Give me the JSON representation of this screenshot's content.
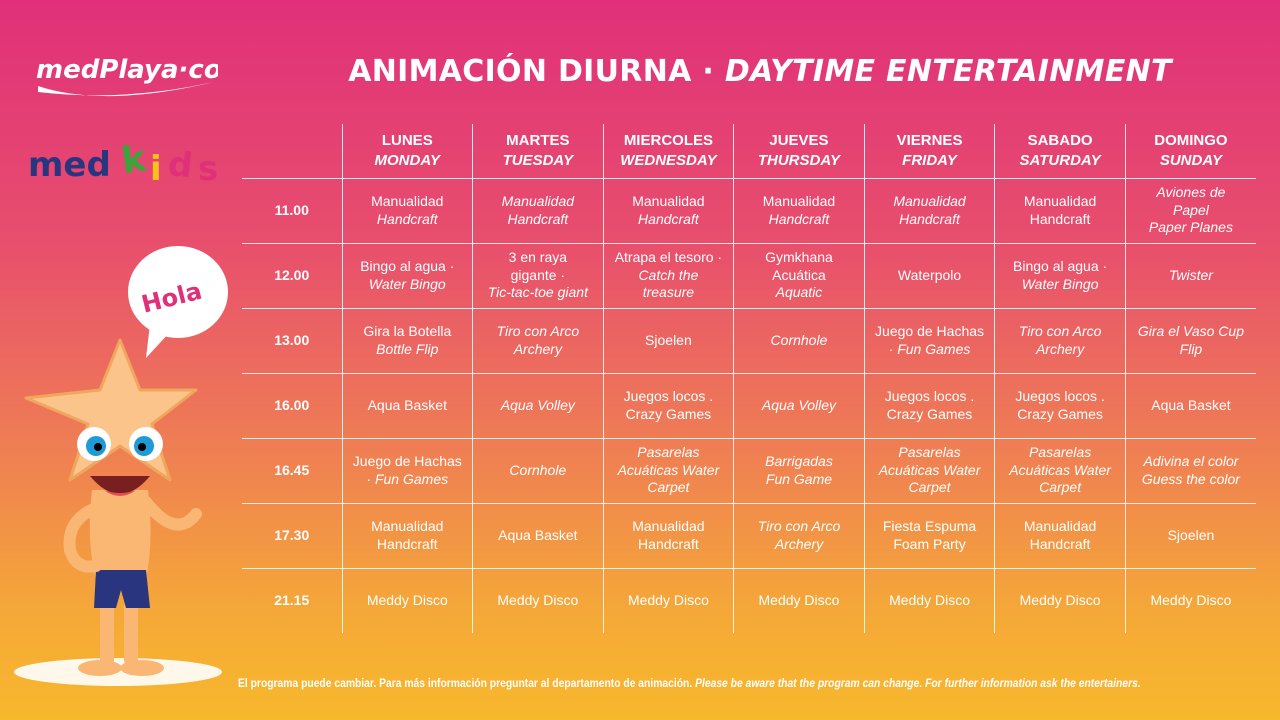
{
  "logos": {
    "medplaya": "medPlaya·com",
    "medkids": "medKids"
  },
  "title": {
    "es": "ANIMACIÓN DIURNA · ",
    "en": "DAYTIME ENTERTAINMENT"
  },
  "mascot": {
    "bubble": "Hola"
  },
  "days": [
    {
      "es": "LUNES",
      "en": "MONDAY"
    },
    {
      "es": "MARTES",
      "en": "TUESDAY"
    },
    {
      "es": "MIERCOLES",
      "en": "WEDNESDAY"
    },
    {
      "es": "JUEVES",
      "en": "THURSDAY"
    },
    {
      "es": "VIERNES",
      "en": "FRIDAY"
    },
    {
      "es": "SABADO",
      "en": "SATURDAY"
    },
    {
      "es": "DOMINGO",
      "en": "SUNDAY"
    }
  ],
  "rows": [
    {
      "time": "11.00",
      "cells": [
        {
          "l1": "Manualidad",
          "l2": "Handcraft",
          "italic": "l2"
        },
        {
          "l1": "Manualidad",
          "l2": "Handcraft",
          "italic": "all"
        },
        {
          "l1": "Manualidad",
          "l2": "Handcraft",
          "italic": "l2"
        },
        {
          "l1": "Manualidad",
          "l2": "Handcraft",
          "italic": "l2"
        },
        {
          "l1": "Manualidad",
          "l2": "Handcraft",
          "italic": "all"
        },
        {
          "l1": "Manualidad",
          "l2": "Handcraft",
          "italic": "none"
        },
        {
          "l1": "Aviones de",
          "l2": "Papel",
          "l3": "Paper Planes",
          "italic": "all"
        }
      ]
    },
    {
      "time": "12.00",
      "cells": [
        {
          "l1": "Bingo al agua ·",
          "l2": "Water Bingo",
          "italic": "l2"
        },
        {
          "l1": "3 en raya",
          "l2": "gigante ·",
          "l3": "Tic-tac-toe giant",
          "italic": "l3"
        },
        {
          "l1": "Atrapa el tesoro ·",
          "l2": "Catch the",
          "l3": "treasure",
          "italic": "l2l3"
        },
        {
          "l1": "Gymkhana",
          "l2": "Acuática",
          "l3": "Aquatic",
          "italic": "l3"
        },
        {
          "l1": "Waterpolo",
          "italic": "none"
        },
        {
          "l1": "Bingo al agua ·",
          "l2": "Water Bingo",
          "italic": "l2"
        },
        {
          "l1": "Twister",
          "italic": "all"
        }
      ]
    },
    {
      "time": "13.00",
      "cells": [
        {
          "l1": "Gira la Botella",
          "l2": "Bottle Flip",
          "italic": "l2"
        },
        {
          "l1": "Tiro con Arco",
          "l2": "Archery",
          "italic": "all"
        },
        {
          "l1": "Sjoelen",
          "italic": "none"
        },
        {
          "l1": "Cornhole",
          "italic": "all"
        },
        {
          "l1": "Juego de Hachas",
          "l2": "· Fun Games",
          "italic": "l2"
        },
        {
          "l1": "Tiro con Arco",
          "l2": "Archery",
          "italic": "all"
        },
        {
          "l1": "Gira el Vaso Cup",
          "l2": "Flip",
          "italic": "all"
        }
      ]
    },
    {
      "time": "16.00",
      "cells": [
        {
          "l1": "Aqua Basket",
          "italic": "none"
        },
        {
          "l1": "Aqua Volley",
          "italic": "all"
        },
        {
          "l1": "Juegos locos .",
          "l2": "Crazy Games",
          "italic": "none"
        },
        {
          "l1": "Aqua Volley",
          "italic": "all"
        },
        {
          "l1": "Juegos locos .",
          "l2": "Crazy Games",
          "italic": "none"
        },
        {
          "l1": "Juegos locos .",
          "l2": "Crazy Games",
          "italic": "none"
        },
        {
          "l1": "Aqua Basket",
          "italic": "none"
        }
      ]
    },
    {
      "time": "16.45",
      "cells": [
        {
          "l1": "Juego de Hachas",
          "l2": "· Fun Games",
          "italic": "l2"
        },
        {
          "l1": "Cornhole",
          "italic": "all"
        },
        {
          "l1": "Pasarelas",
          "l2": "Acuáticas Water",
          "l3": "Carpet",
          "italic": "all"
        },
        {
          "l1": "Barrigadas",
          "l2": "Fun Game",
          "italic": "all"
        },
        {
          "l1": "Pasarelas",
          "l2": "Acuáticas Water",
          "l3": "Carpet",
          "italic": "all"
        },
        {
          "l1": "Pasarelas",
          "l2": "Acuáticas Water",
          "l3": "Carpet",
          "italic": "all"
        },
        {
          "l1": "Adivina el color",
          "l2": "Guess the color",
          "italic": "all"
        }
      ]
    },
    {
      "time": "17.30",
      "cells": [
        {
          "l1": "Manualidad",
          "l2": "Handcraft",
          "italic": "none"
        },
        {
          "l1": "Aqua Basket",
          "italic": "none"
        },
        {
          "l1": "Manualidad",
          "l2": "Handcraft",
          "italic": "none"
        },
        {
          "l1": "Tiro con Arco",
          "l2": "Archery",
          "italic": "all"
        },
        {
          "l1": "Fiesta Espuma",
          "l2": "Foam Party",
          "italic": "none"
        },
        {
          "l1": "Manualidad",
          "l2": "Handcraft",
          "italic": "none"
        },
        {
          "l1": "Sjoelen",
          "italic": "none"
        }
      ]
    },
    {
      "time": "21.15",
      "cells": [
        {
          "l1": "Meddy Disco",
          "italic": "none"
        },
        {
          "l1": "Meddy Disco",
          "italic": "none"
        },
        {
          "l1": "Meddy Disco",
          "italic": "none"
        },
        {
          "l1": "Meddy Disco",
          "italic": "none"
        },
        {
          "l1": "Meddy Disco",
          "italic": "none"
        },
        {
          "l1": "Meddy Disco",
          "italic": "none"
        },
        {
          "l1": "Meddy Disco",
          "italic": "none"
        }
      ]
    }
  ],
  "footer": {
    "es": "El programa puede cambiar. Para más información preguntar  al departamento de animación. ",
    "en": "Please be aware that the program can change. For further information ask the entertainers."
  },
  "colors": {
    "bg_top": "#e0307a",
    "bg_bottom": "#f7b82c",
    "bubble_text": "#e0307a",
    "mascot_body": "#f9b773",
    "swimsuit": "#2a3580"
  }
}
